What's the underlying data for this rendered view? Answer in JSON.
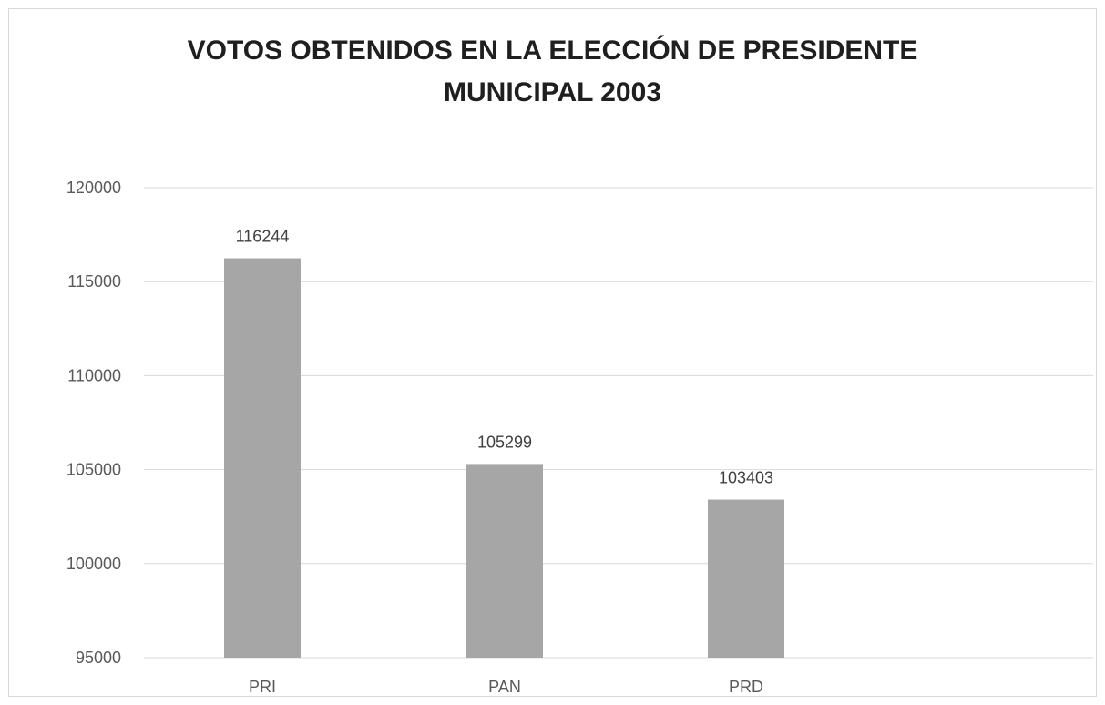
{
  "chart_data": {
    "type": "bar",
    "title_lines": [
      "VOTOS OBTENIDOS EN LA ELECCIÓN DE PRESIDENTE",
      "MUNICIPAL 2003"
    ],
    "categories": [
      "PRI",
      "PAN",
      "PRD"
    ],
    "values": [
      116244,
      105299,
      103403
    ],
    "data_labels": [
      "116244",
      "105299",
      "103403"
    ],
    "ylim": [
      95000,
      120000
    ],
    "y_ticks": [
      95000,
      100000,
      105000,
      110000,
      115000,
      120000
    ],
    "y_tick_labels": [
      "95000",
      "100000",
      "105000",
      "110000",
      "115000",
      "120000"
    ],
    "grid": true,
    "bar_color": "#a6a6a6",
    "grid_color": "#d9d9d9"
  }
}
